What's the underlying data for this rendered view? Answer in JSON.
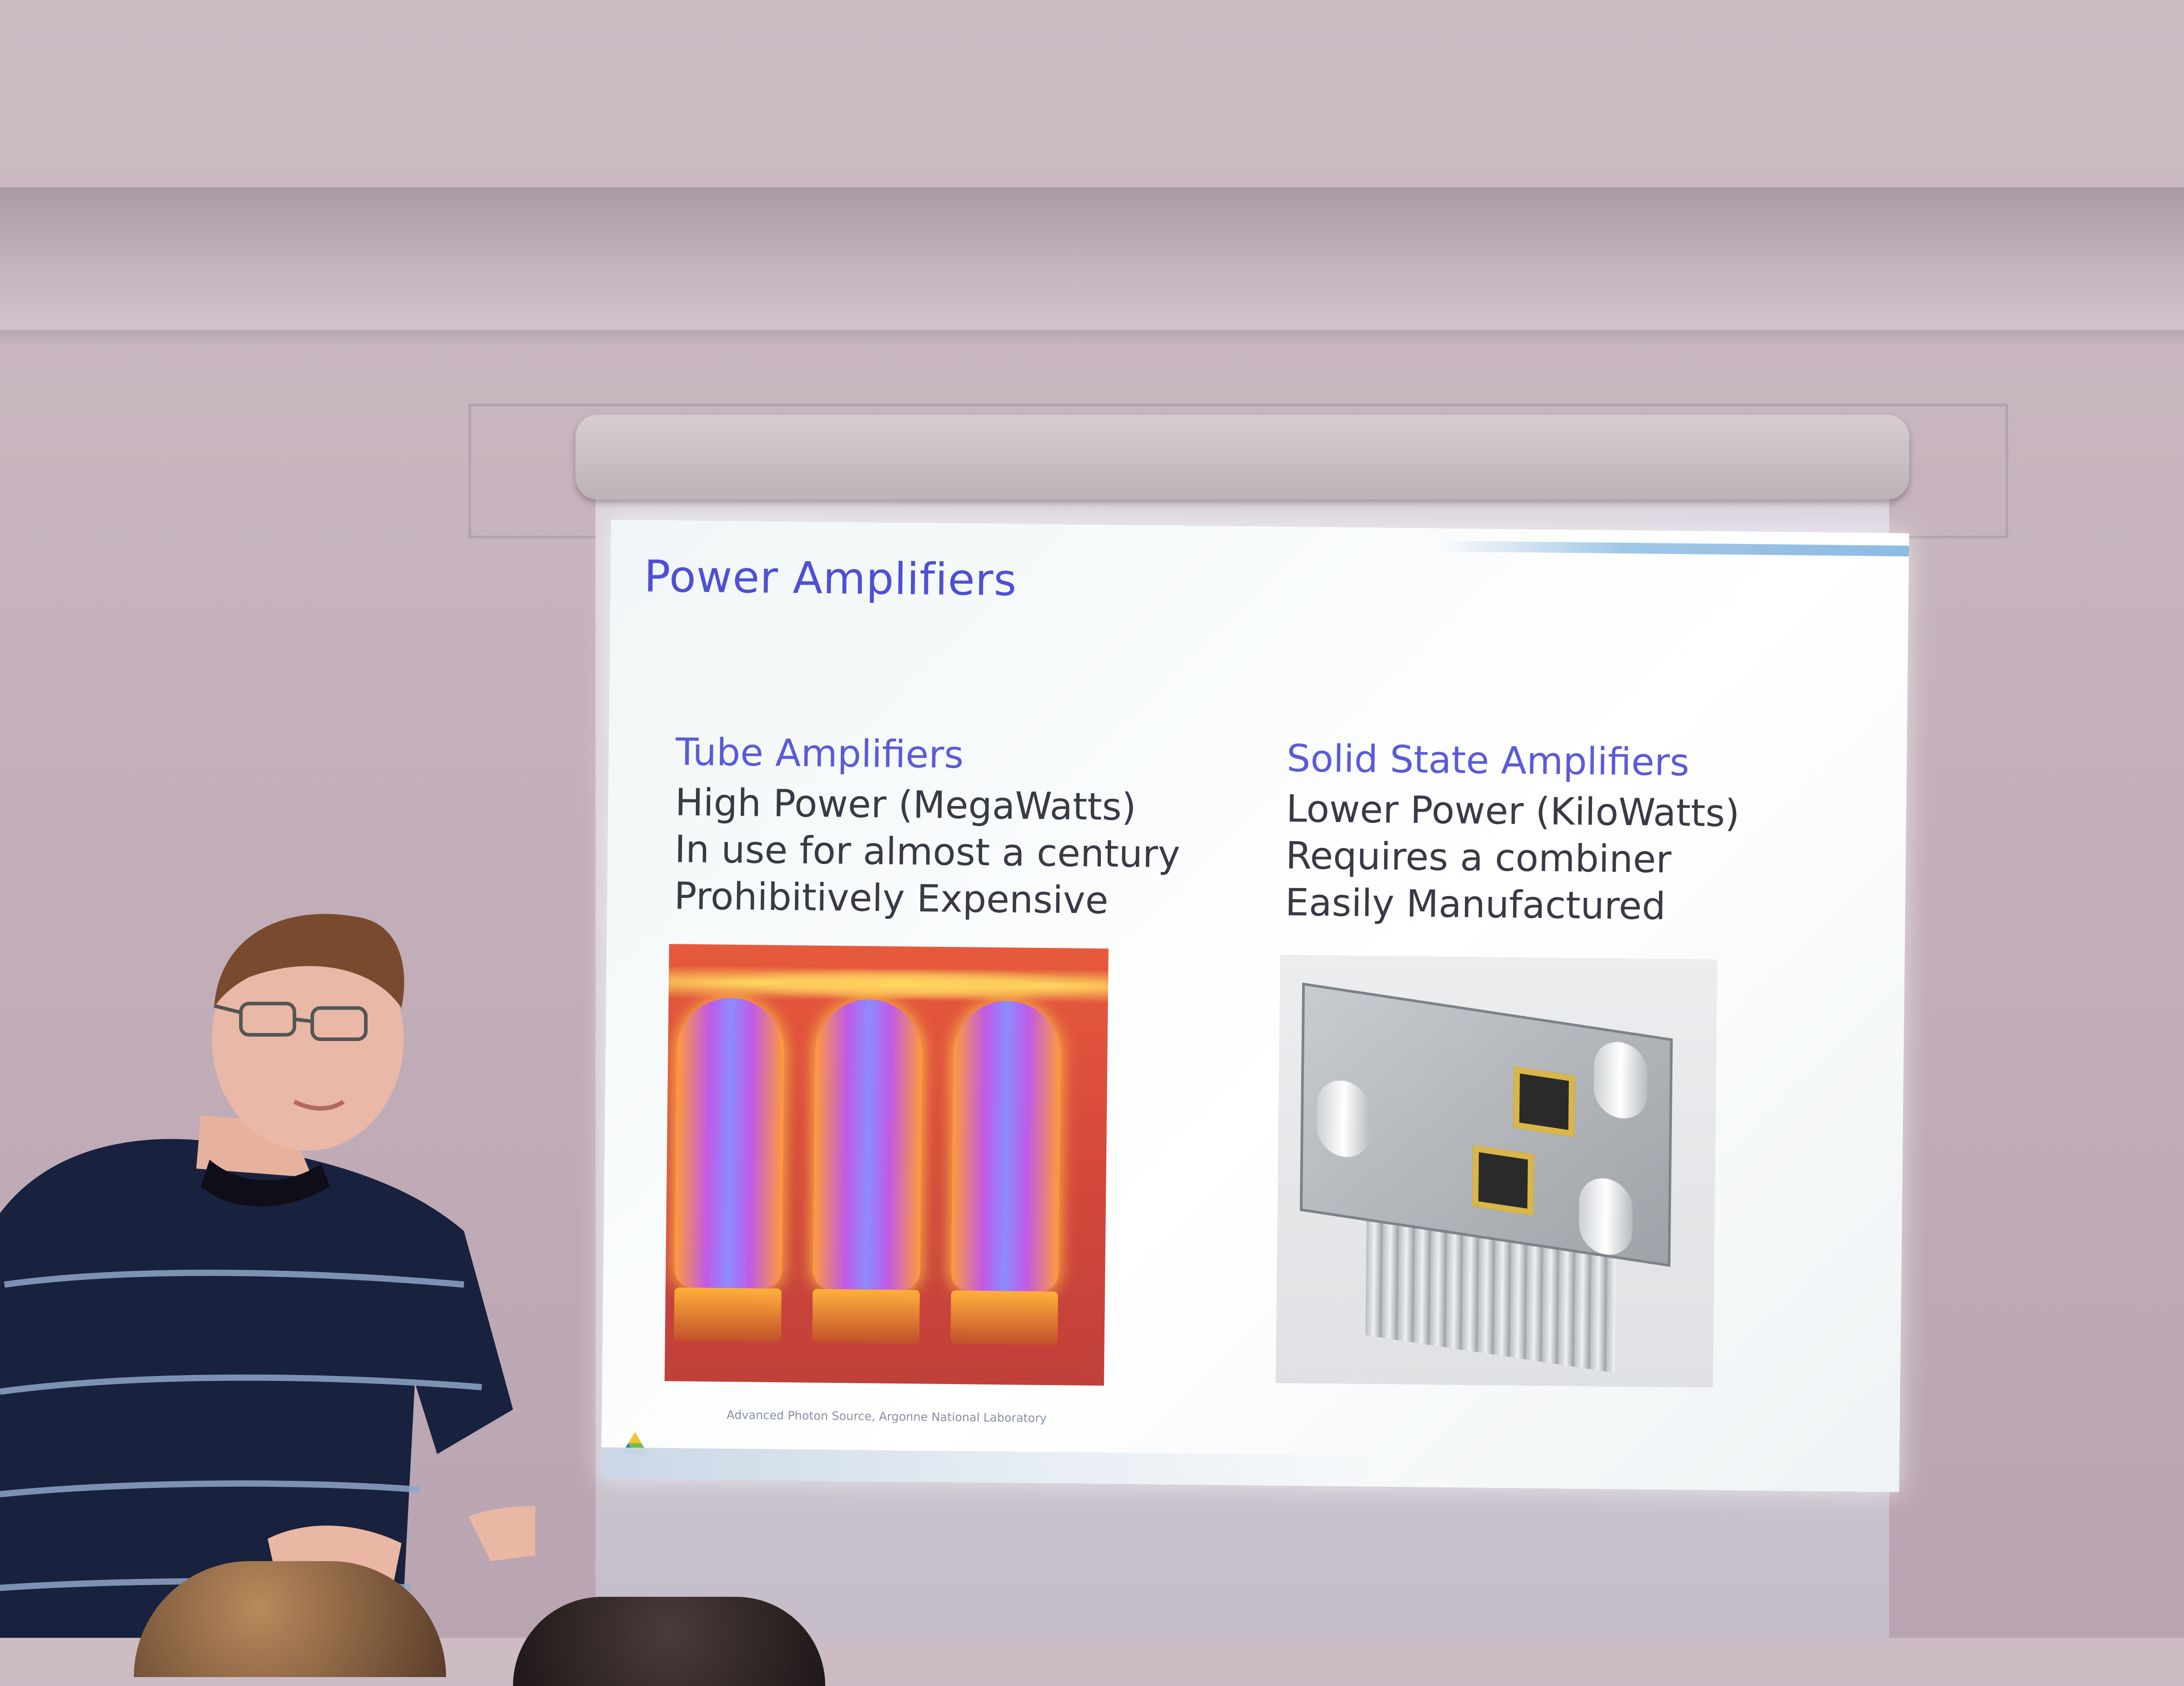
{
  "slide": {
    "title": "Power Amplifiers",
    "left_column": {
      "heading": "Tube Amplifiers",
      "lines": [
        "High Power (MegaWatts)",
        "In use for almost a century",
        "Prohibitively Expensive"
      ]
    },
    "right_column": {
      "heading": "Solid State Amplifiers",
      "lines": [
        "Lower Power (KiloWatts)",
        "Requires a combiner",
        "Easily Manufactured"
      ]
    },
    "image_credit": "Advanced Photon Source, Argonne National Laboratory"
  },
  "colors": {
    "title": "#4f4fd6",
    "heading": "#5b5bd8",
    "body_text": "#3a3a46",
    "shirt": "#18213d",
    "shirt_stripe": "#8fa6c8"
  }
}
